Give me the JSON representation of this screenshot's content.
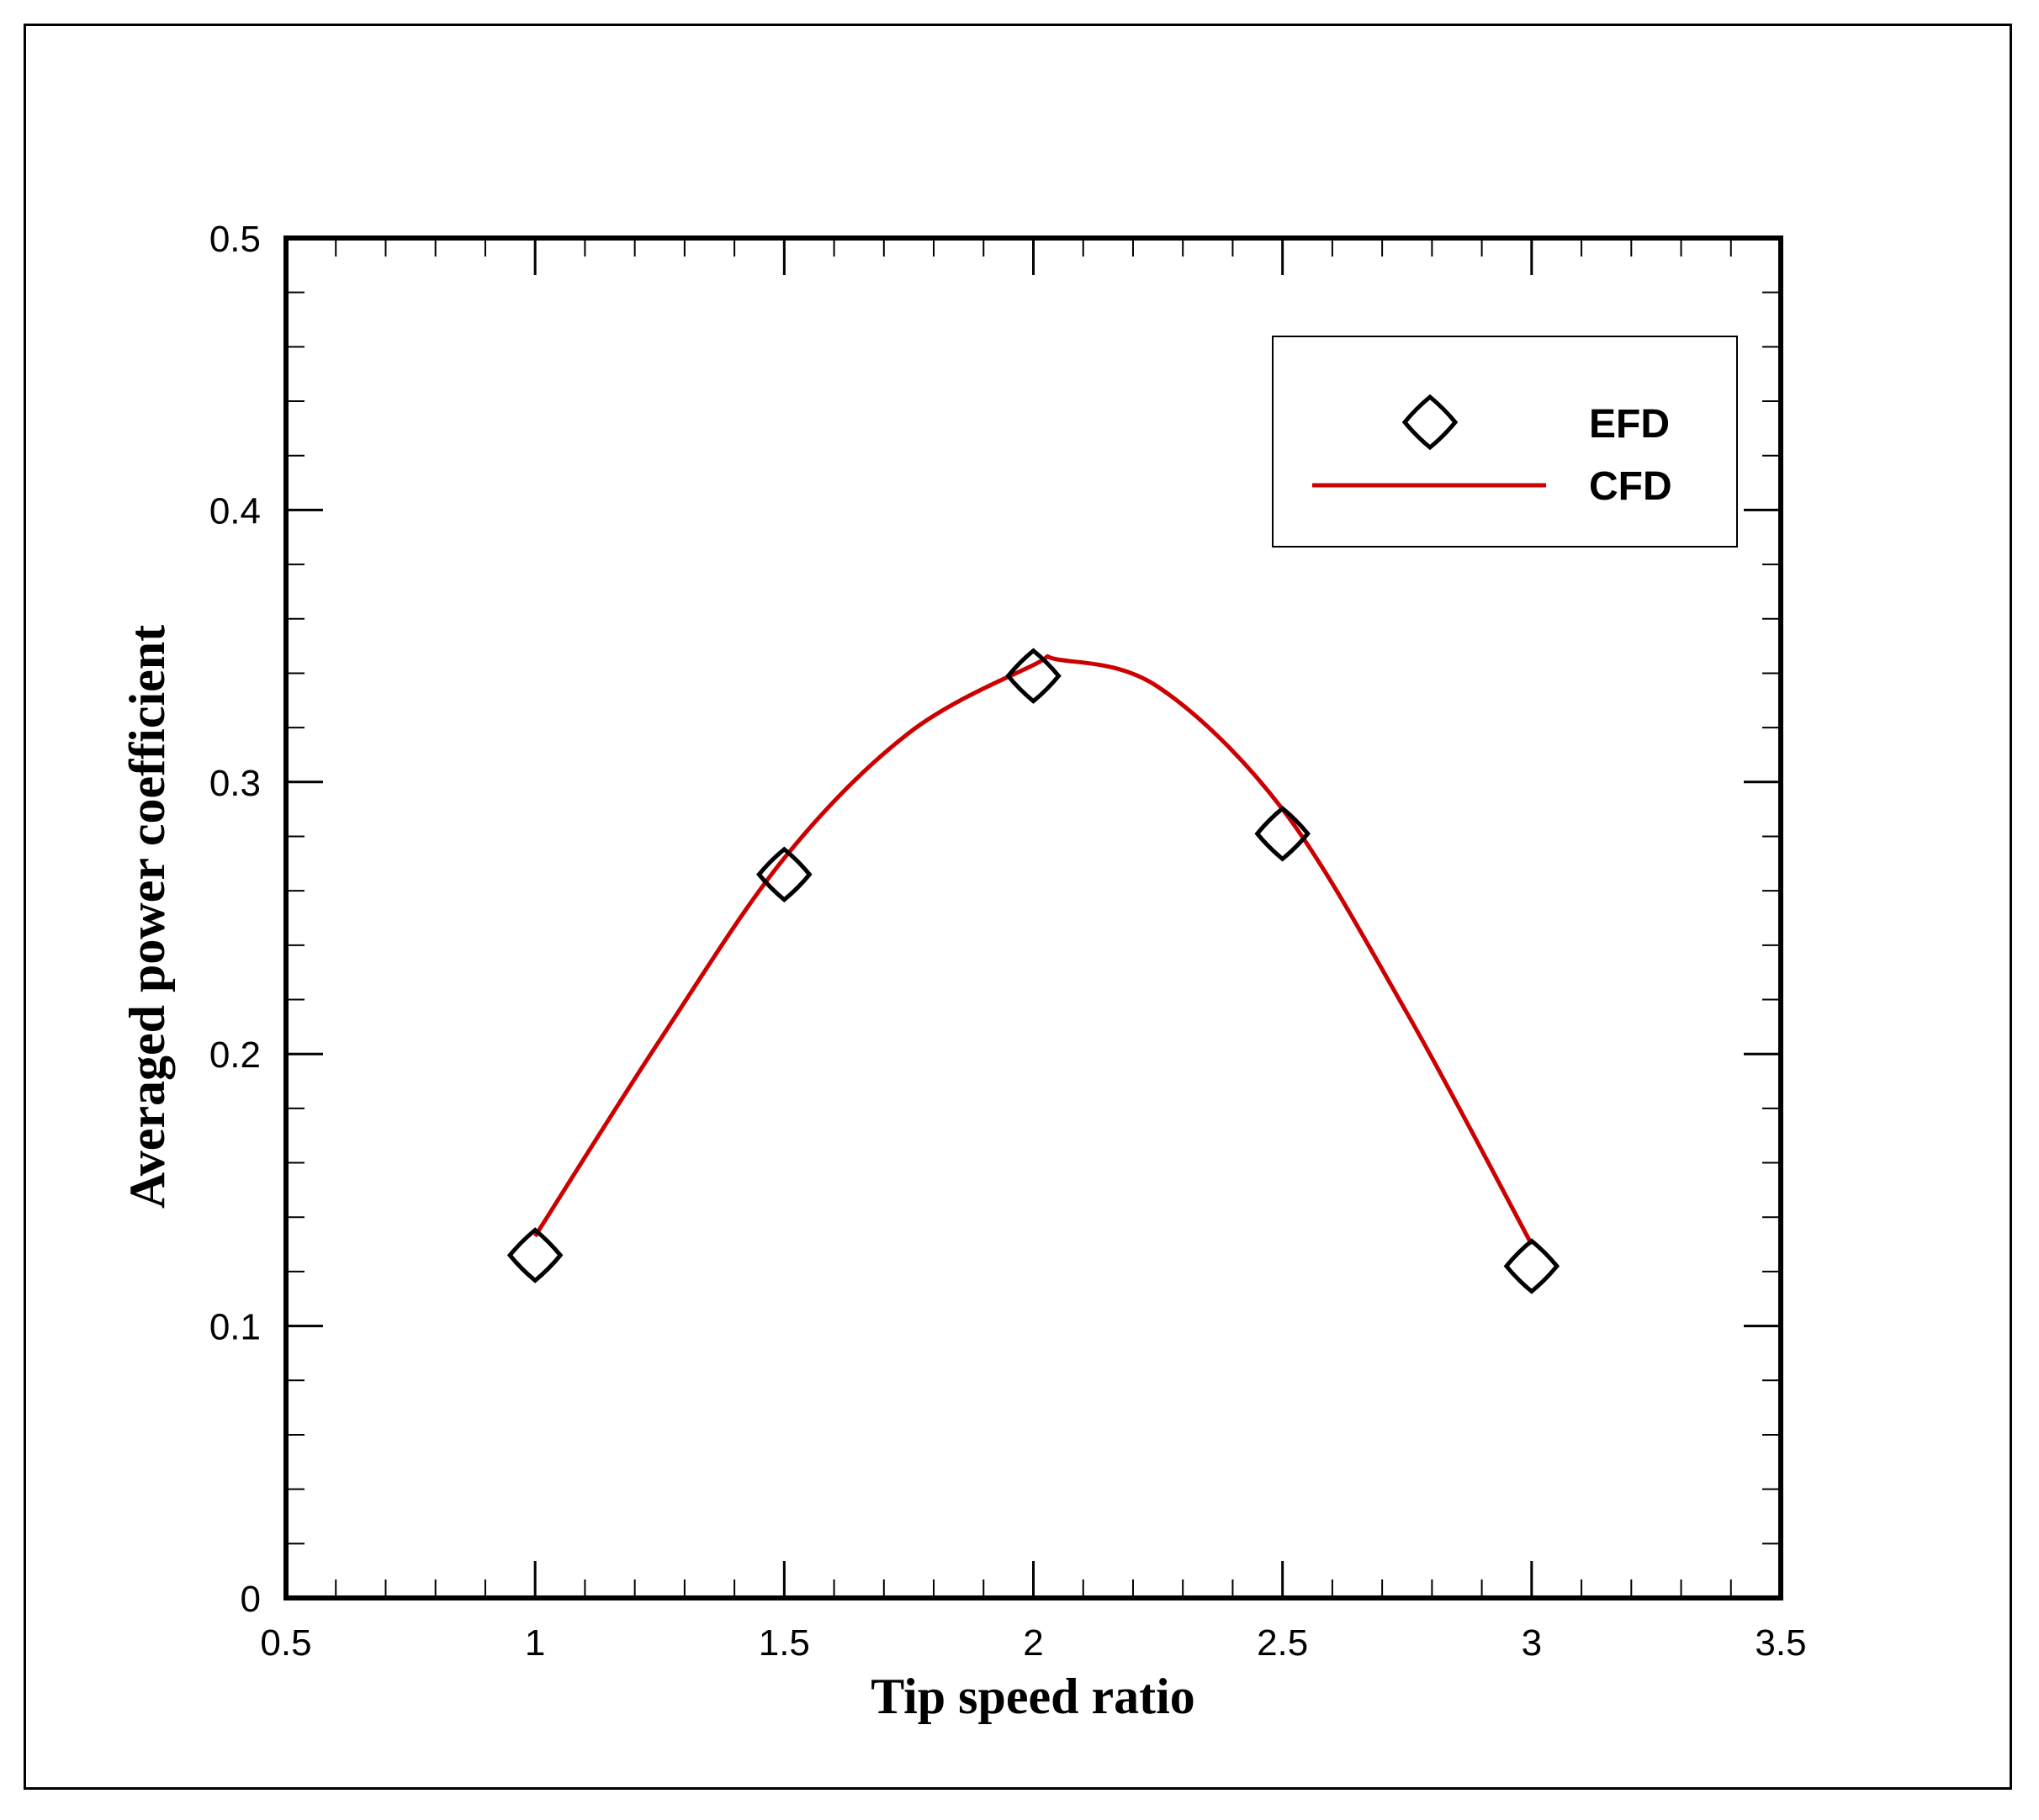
{
  "chart_data": {
    "type": "line",
    "xlabel": "Tip speed ratio",
    "ylabel": "Averaged power coefficient",
    "xlim": [
      0.5,
      3.5
    ],
    "ylim": [
      0,
      0.5
    ],
    "x_ticks": [
      "0.5",
      "1",
      "1.5",
      "2",
      "2.5",
      "3",
      "3.5"
    ],
    "y_ticks": [
      "0",
      "0.1",
      "0.2",
      "0.3",
      "0.4",
      "0.5"
    ],
    "grid": false,
    "legend_position": "top-right",
    "series": [
      {
        "name": "EFD",
        "kind": "scatter",
        "marker": "diamond-circle",
        "color": "#000000",
        "x": [
          1.0,
          1.5,
          2.0,
          2.5,
          3.0
        ],
        "y": [
          0.126,
          0.266,
          0.339,
          0.281,
          0.122
        ]
      },
      {
        "name": "CFD",
        "kind": "line",
        "color": "#cc0000",
        "x": [
          1.0,
          1.25,
          1.5,
          1.75,
          2.0,
          2.05,
          2.25,
          2.5,
          2.75,
          3.0
        ],
        "y": [
          0.133,
          0.205,
          0.272,
          0.318,
          0.343,
          0.345,
          0.335,
          0.29,
          0.215,
          0.13
        ]
      }
    ]
  }
}
